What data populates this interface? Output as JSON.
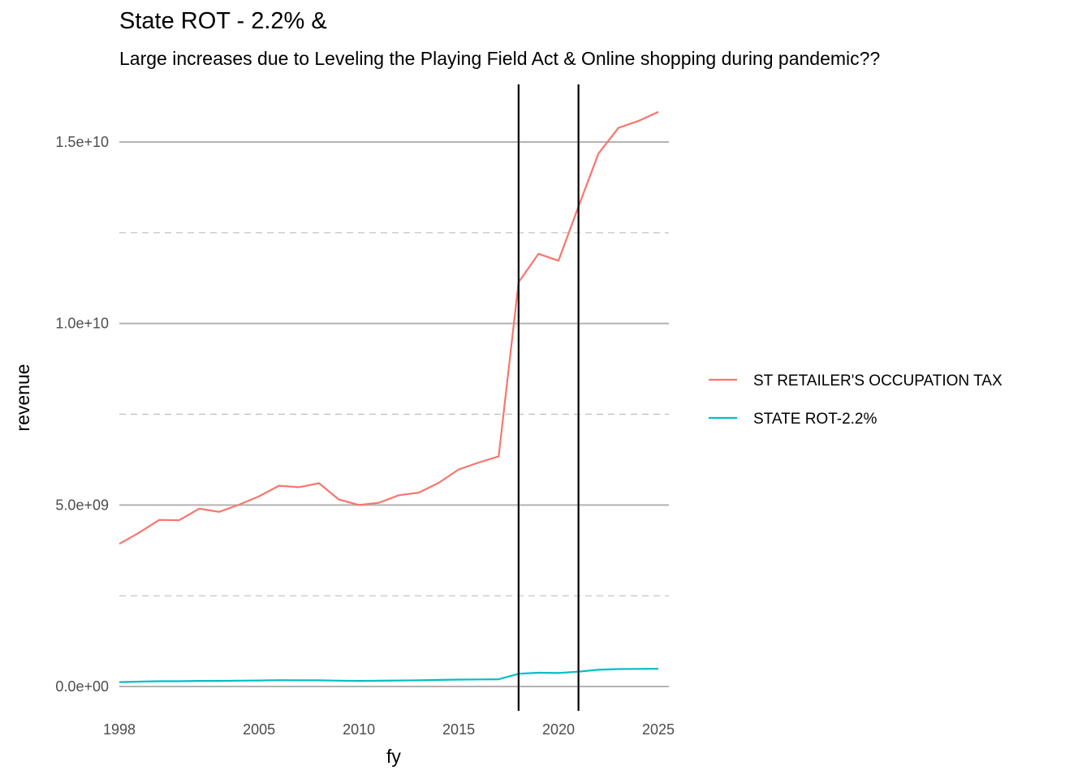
{
  "chart_data": {
    "type": "line",
    "title": "State ROT - 2.2% &",
    "subtitle": "Large increases due to Leveling the Playing Field Act & Online shopping during pandemic??",
    "xlabel": "fy",
    "ylabel": "revenue",
    "xlim": [
      1998,
      2025
    ],
    "ylim": [
      0,
      15800000000
    ],
    "x_ticks": [
      1998,
      2005,
      2010,
      2015,
      2020,
      2025
    ],
    "y_ticks": [
      {
        "value": 0,
        "label": "0.0e+00"
      },
      {
        "value": 5000000000,
        "label": "5.0e+09"
      },
      {
        "value": 10000000000,
        "label": "1.0e+10"
      },
      {
        "value": 15000000000,
        "label": "1.5e+10"
      }
    ],
    "y_minor_ticks": [
      2500000000,
      7500000000,
      12500000000
    ],
    "grid": true,
    "vlines": [
      2018,
      2021
    ],
    "legend_position": "right",
    "x": [
      1998,
      1999,
      2000,
      2001,
      2002,
      2003,
      2004,
      2005,
      2006,
      2007,
      2008,
      2009,
      2010,
      2011,
      2012,
      2013,
      2014,
      2015,
      2016,
      2017,
      2018,
      2019,
      2020,
      2021,
      2022,
      2023,
      2024,
      2025
    ],
    "series": [
      {
        "name": "ST RETAILER'S OCCUPATION TAX",
        "color": "#F8766D",
        "values": [
          3930000000,
          4240000000,
          4590000000,
          4580000000,
          4900000000,
          4810000000,
          5010000000,
          5240000000,
          5530000000,
          5490000000,
          5600000000,
          5150000000,
          5000000000,
          5060000000,
          5270000000,
          5340000000,
          5610000000,
          5980000000,
          6170000000,
          6340000000,
          11140000000,
          11920000000,
          11730000000,
          13220000000,
          14680000000,
          15390000000,
          15580000000,
          15830000000
        ]
      },
      {
        "name": "STATE ROT-2.2%",
        "color": "#00BFC4",
        "values": [
          120000000,
          135000000,
          145000000,
          145000000,
          155000000,
          155000000,
          160000000,
          165000000,
          175000000,
          170000000,
          170000000,
          160000000,
          155000000,
          158000000,
          165000000,
          170000000,
          180000000,
          190000000,
          195000000,
          200000000,
          350000000,
          380000000,
          370000000,
          410000000,
          460000000,
          480000000,
          485000000,
          490000000
        ]
      }
    ]
  }
}
